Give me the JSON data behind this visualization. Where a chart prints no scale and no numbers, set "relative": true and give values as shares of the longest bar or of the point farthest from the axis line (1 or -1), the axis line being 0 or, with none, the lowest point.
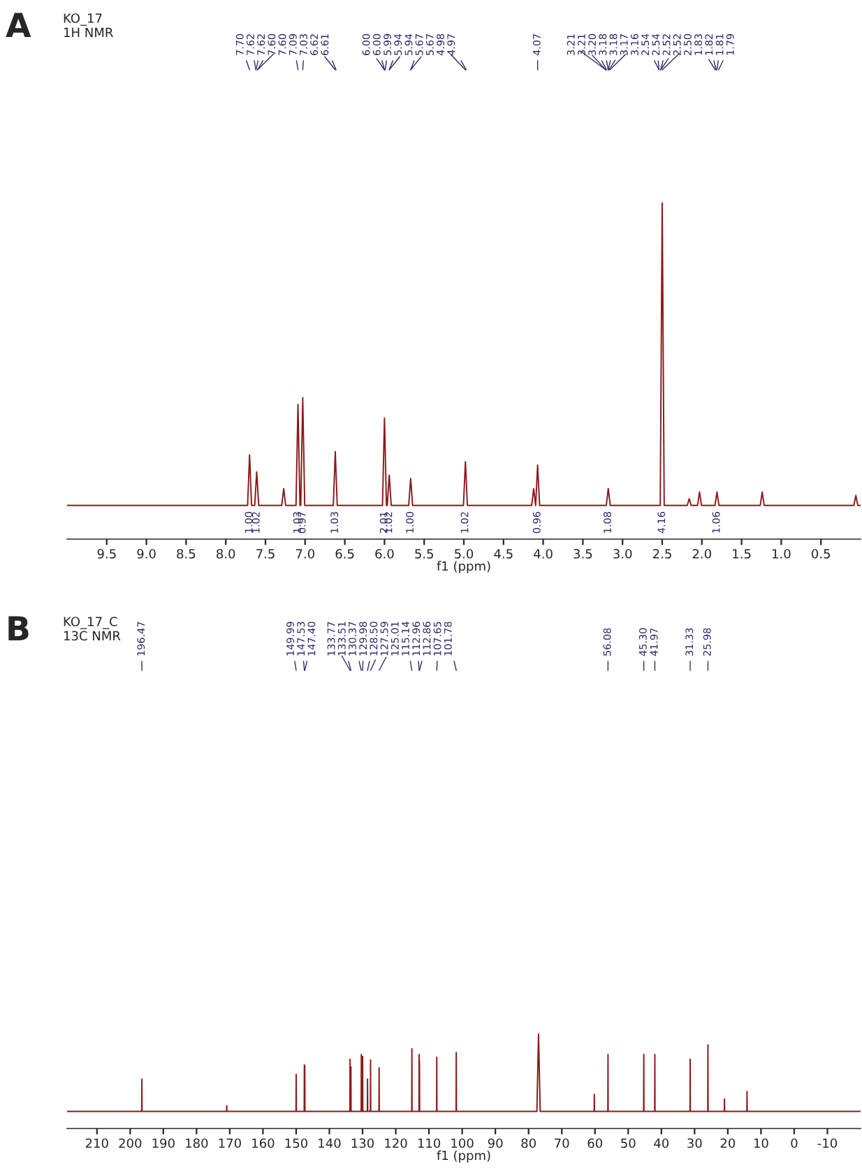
{
  "chart_data": [
    {
      "type": "line",
      "title": "KO_17",
      "subtitle": "1H NMR",
      "xlabel": "f1 (ppm)",
      "relative": true,
      "grid": false,
      "xlim": [
        10.0,
        0.0
      ],
      "xticks": [
        9.5,
        {
          "value": 9,
          "label": "9.0"
        },
        8.5,
        {
          "value": 8,
          "label": "8.0"
        },
        7.5,
        {
          "value": 7,
          "label": "7.0"
        },
        6.5,
        {
          "value": 6,
          "label": "6.0"
        },
        5.5,
        {
          "value": 5,
          "label": "5.0"
        },
        4.5,
        {
          "value": 4,
          "label": "4.0"
        },
        3.5,
        {
          "value": 3,
          "label": "3.0"
        },
        2.5,
        {
          "value": 2,
          "label": "2.0"
        },
        1.5,
        {
          "value": 1,
          "label": "1.0"
        },
        0.5
      ],
      "series": [
        {
          "color": "#8b1a1a",
          "x": [
            10.0,
            7.725,
            7.7,
            7.675,
            7.635,
            7.61,
            7.585,
            7.295,
            7.27,
            7.245,
            7.115,
            7.09,
            7.065,
            7.055,
            7.03,
            7.005,
            6.645,
            6.62,
            6.595,
            6.025,
            6.0,
            5.975,
            5.965,
            5.94,
            5.915,
            5.695,
            5.67,
            5.645,
            5.005,
            4.98,
            4.955,
            4.145,
            4.12,
            4.095,
            4.095,
            4.07,
            4.045,
            3.205,
            3.18,
            3.155,
            2.525,
            2.5,
            2.475,
            2.185,
            2.16,
            2.135,
            2.055,
            2.03,
            2.005,
            1.835,
            1.81,
            1.785,
            1.265,
            1.24,
            1.215,
            0.085,
            0.06,
            0.035,
            0.0
          ],
          "values": [
            0.1,
            0.1,
            0.25,
            0.1,
            0.1,
            0.2,
            0.1,
            0.1,
            0.15,
            0.1,
            0.1,
            0.4,
            0.1,
            0.1,
            0.42,
            0.1,
            0.1,
            0.26,
            0.1,
            0.1,
            0.36,
            0.1,
            0.1,
            0.19,
            0.1,
            0.1,
            0.18,
            0.1,
            0.1,
            0.23,
            0.1,
            0.1,
            0.15,
            0.1,
            0.1,
            0.22,
            0.1,
            0.1,
            0.15,
            0.1,
            0.1,
            1.0,
            0.1,
            0.1,
            0.12,
            0.1,
            0.1,
            0.14,
            0.1,
            0.1,
            0.14,
            0.1,
            0.1,
            0.14,
            0.1,
            0.1,
            0.13,
            0.1,
            0.1
          ]
        }
      ],
      "annotations": [
        "A",
        "7.70",
        "7.62",
        "7.62",
        "7.60",
        "7.60",
        "7.09",
        "7.03",
        "6.62",
        "6.61",
        "6.00",
        "6.00",
        "5.99",
        "5.94",
        "5.94",
        "5.67",
        "5.67",
        "4.98",
        "4.97",
        "4.07",
        "3.21",
        "3.21",
        "3.20",
        "3.18",
        "3.18",
        "3.17",
        "3.16",
        "2.54",
        "2.54",
        "2.52",
        "2.52",
        "2.50",
        "1.83",
        "1.82",
        "1.81",
        "1.79",
        {
          "text": "1.00",
          "x": 7.7,
          "y": 0.1
        },
        {
          "text": "1.02",
          "x": 7.61,
          "y": 0.1
        },
        {
          "text": "1.03",
          "x": 7.09,
          "y": 0.1
        },
        {
          "text": "0.97",
          "x": 7.03,
          "y": 0.1
        },
        {
          "text": "1.03",
          "x": 6.62,
          "y": 0.1
        },
        {
          "text": "2.01",
          "x": 6.0,
          "y": 0.1
        },
        {
          "text": "1.02",
          "x": 5.94,
          "y": 0.1
        },
        {
          "text": "1.00",
          "x": 5.67,
          "y": 0.1
        },
        {
          "text": "1.02",
          "x": 4.98,
          "y": 0.1
        },
        {
          "text": "0.96",
          "x": 4.07,
          "y": 0.1
        },
        {
          "text": "1.08",
          "x": 3.18,
          "y": 0.1
        },
        {
          "text": "4.16",
          "x": 2.5,
          "y": 0.1
        },
        {
          "text": "1.06",
          "x": 1.81,
          "y": 0.1
        }
      ]
    },
    {
      "type": "line",
      "title": "KO_17_C",
      "subtitle": "13C NMR",
      "xlabel": "f1 (ppm)",
      "relative": true,
      "grid": false,
      "xlim": [
        219,
        -20
      ],
      "xticks": [
        210,
        200,
        190,
        180,
        170,
        160,
        150,
        140,
        130,
        120,
        110,
        100,
        90,
        80,
        70,
        60,
        50,
        40,
        30,
        20,
        10,
        0,
        -10
      ],
      "series": [
        {
          "color": "#8b1a1a",
          "x": [
            219,
            196.52,
            196.47,
            196.42,
            170.95,
            170.9,
            170.85,
            150.04,
            149.99,
            149.94,
            147.58,
            147.53,
            147.47,
            147.45,
            147.4,
            147.35,
            133.82,
            133.77,
            133.72,
            133.56,
            133.51,
            133.46,
            130.42,
            130.37,
            130.32,
            130.03,
            129.98,
            129.93,
            128.55,
            128.5,
            128.45,
            127.64,
            127.59,
            127.54,
            125.06,
            125.01,
            124.96,
            115.19,
            115.14,
            115.09,
            113.01,
            112.96,
            112.91,
            112.91,
            112.86,
            112.81,
            107.7,
            107.65,
            107.6,
            101.83,
            101.78,
            101.73,
            77.5,
            77.0,
            76.5,
            60.25,
            60.2,
            60.15,
            56.13,
            56.08,
            56.03,
            45.35,
            45.3,
            45.25,
            42.02,
            41.97,
            41.92,
            31.38,
            31.33,
            31.28,
            26.03,
            25.98,
            25.93,
            21.05,
            21.0,
            20.95,
            14.25,
            14.2,
            14.15,
            -20
          ],
          "values": [
            0.18,
            0.18,
            0.52,
            0.18,
            0.18,
            0.24,
            0.18,
            0.18,
            0.57,
            0.18,
            0.18,
            0.67,
            0.18,
            0.18,
            0.66,
            0.18,
            0.18,
            0.73,
            0.18,
            0.18,
            0.65,
            0.18,
            0.18,
            0.78,
            0.18,
            0.18,
            0.76,
            0.18,
            0.18,
            0.52,
            0.18,
            0.18,
            0.72,
            0.18,
            0.18,
            0.64,
            0.18,
            0.18,
            0.84,
            0.18,
            0.18,
            0.78,
            0.18,
            0.18,
            0.71,
            0.18,
            0.18,
            0.75,
            0.18,
            0.18,
            0.8,
            0.18,
            0.18,
            1.0,
            0.18,
            0.18,
            0.36,
            0.18,
            0.18,
            0.78,
            0.18,
            0.18,
            0.78,
            0.18,
            0.18,
            0.78,
            0.18,
            0.18,
            0.73,
            0.18,
            0.18,
            0.88,
            0.18,
            0.18,
            0.31,
            0.18,
            0.18,
            0.39,
            0.18,
            0.18
          ]
        }
      ],
      "annotations": [
        "B",
        "196.47",
        "149.99",
        "147.53",
        "147.40",
        "133.77",
        "133.51",
        "130.37",
        "129.98",
        "128.50",
        "127.59",
        "125.01",
        "115.14",
        "112.96",
        "112.86",
        "107.65",
        "101.78",
        "56.08",
        "45.30",
        "41.97",
        "31.33",
        "25.98"
      ]
    }
  ]
}
